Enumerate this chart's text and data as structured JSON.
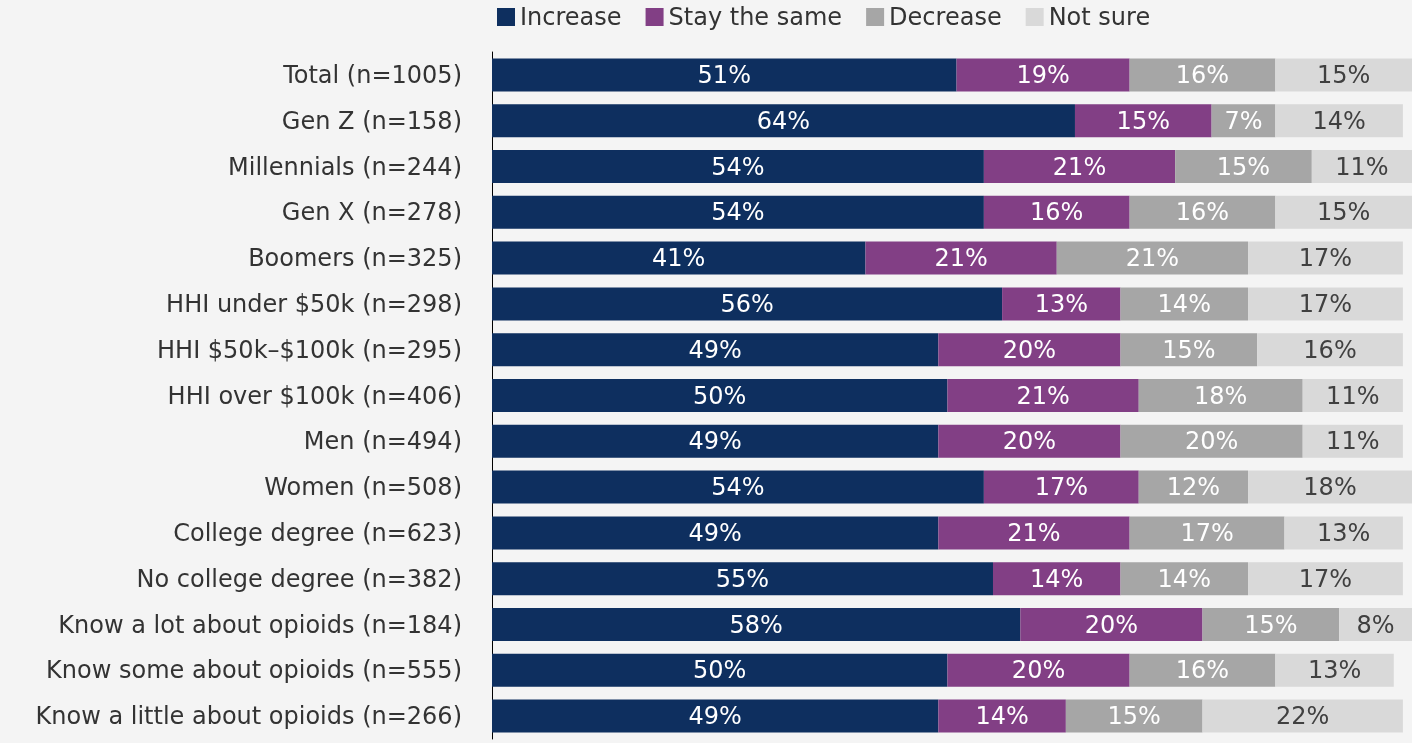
{
  "chart_data": {
    "type": "bar",
    "orientation": "horizontal",
    "stacked": true,
    "legend": "top",
    "categories": [
      "Total (n=1005)",
      "Gen Z (n=158)",
      "Millennials (n=244)",
      "Gen X (n=278)",
      "Boomers (n=325)",
      "HHI under $50k (n=298)",
      "HHI $50k–$100k (n=295)",
      "HHI over $100k (n=406)",
      "Men (n=494)",
      "Women (n=508)",
      "College degree (n=623)",
      "No college degree (n=382)",
      "Know a lot about opioids (n=184)",
      "Know some about opioids (n=555)",
      "Know a little about opioids (n=266)"
    ],
    "series": [
      {
        "name": "Increase",
        "color": "#0e2f5f",
        "values": [
          51,
          64,
          54,
          54,
          41,
          56,
          49,
          50,
          49,
          54,
          49,
          55,
          58,
          50,
          49
        ],
        "value_labels": [
          "51%",
          "64%",
          "54%",
          "54%",
          "41%",
          "56%",
          "49%",
          "50%",
          "49%",
          "54%",
          "49%",
          "55%",
          "58%",
          "50%",
          "49%"
        ]
      },
      {
        "name": "Stay the same",
        "color": "#823f85",
        "values": [
          19,
          15,
          21,
          16,
          21,
          13,
          20,
          21,
          20,
          17,
          21,
          14,
          20,
          20,
          14
        ],
        "value_labels": [
          "19%",
          "15%",
          "21%",
          "16%",
          "21%",
          "13%",
          "20%",
          "21%",
          "20%",
          "17%",
          "21%",
          "14%",
          "20%",
          "20%",
          "14%"
        ]
      },
      {
        "name": "Decrease",
        "color": "#a6a6a6",
        "values": [
          16,
          7,
          15,
          16,
          21,
          14,
          15,
          18,
          20,
          12,
          17,
          14,
          15,
          16,
          15
        ],
        "value_labels": [
          "16%",
          "7%",
          "15%",
          "16%",
          "21%",
          "14%",
          "15%",
          "18%",
          "20%",
          "12%",
          "17%",
          "14%",
          "15%",
          "16%",
          "15%"
        ]
      },
      {
        "name": "Not sure",
        "color": "#d9d9d9",
        "values": [
          15,
          14,
          11,
          15,
          17,
          17,
          16,
          11,
          11,
          18,
          13,
          17,
          8,
          13,
          22
        ],
        "value_labels": [
          "15%",
          "14%",
          "11%",
          "15%",
          "17%",
          "17%",
          "16%",
          "11%",
          "11%",
          "18%",
          "13%",
          "17%",
          "8%",
          "13%",
          "22%"
        ]
      }
    ]
  }
}
